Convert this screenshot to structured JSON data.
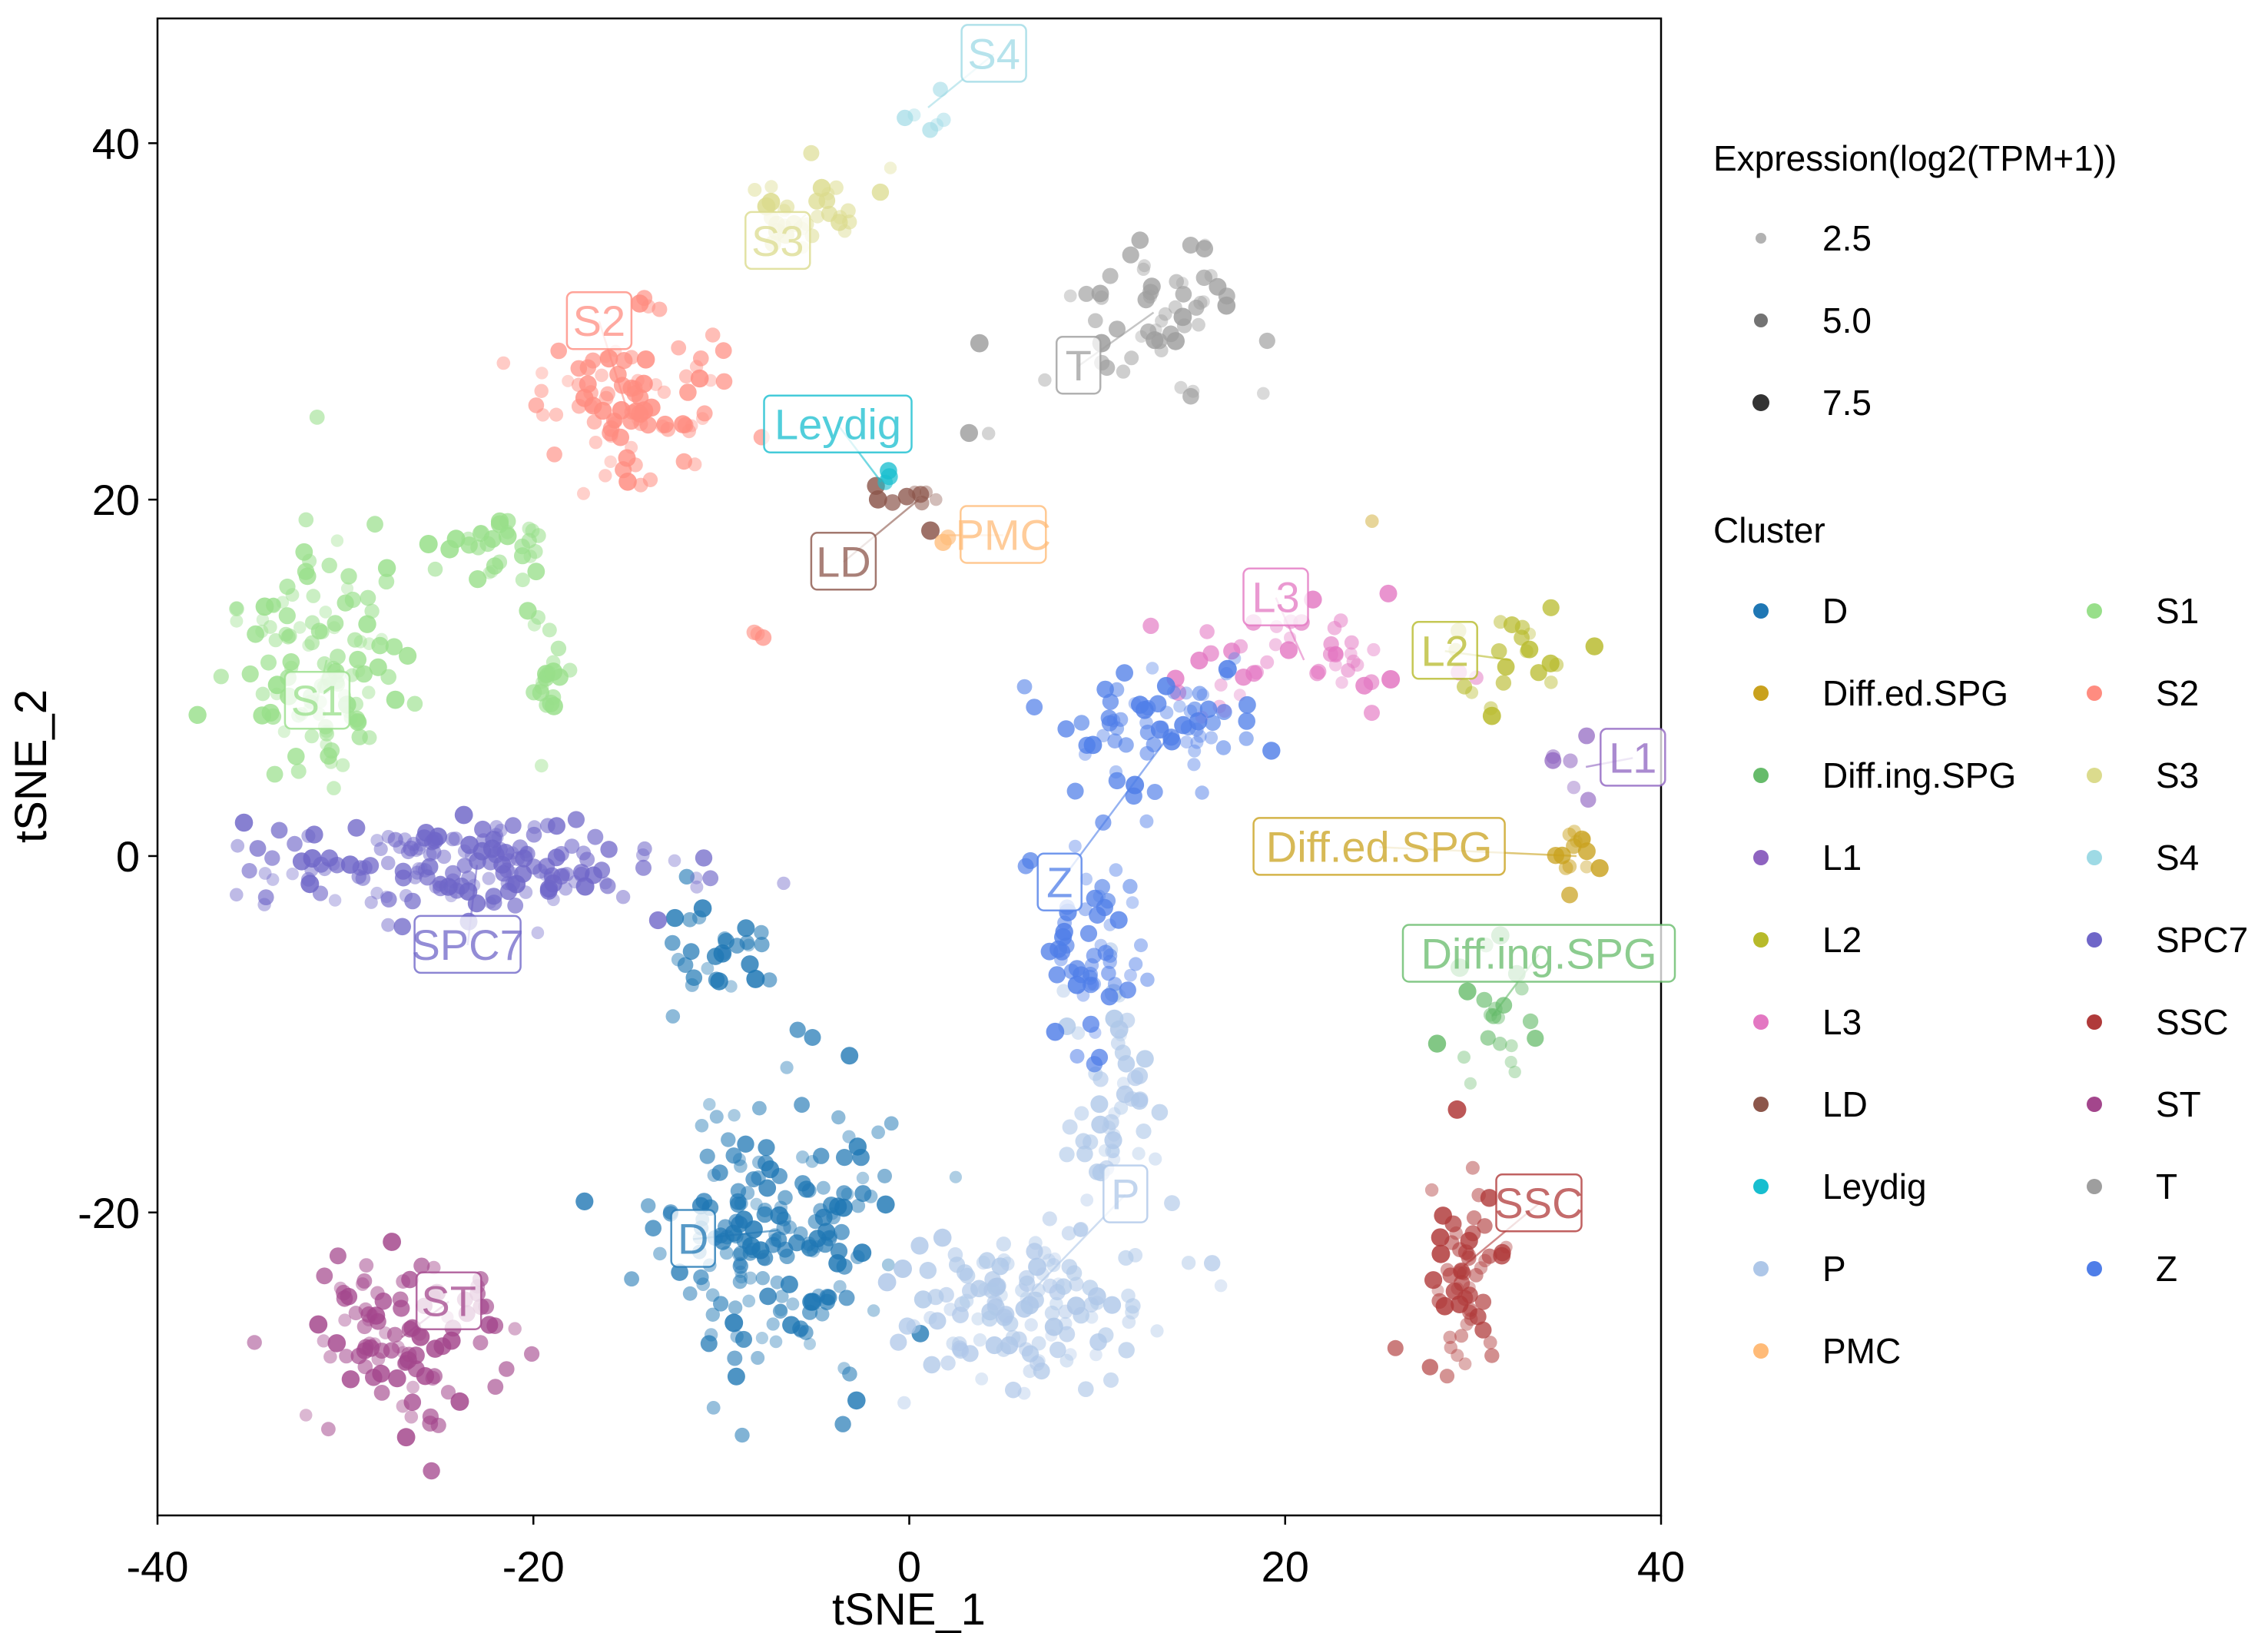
{
  "chart_data": {
    "type": "scatter",
    "title": "",
    "xlabel": "tSNE_1",
    "ylabel": "tSNE_2",
    "xlim": [
      -40,
      40
    ],
    "ylim": [
      -37,
      47
    ],
    "x_ticks": [
      -40,
      -20,
      0,
      20,
      40
    ],
    "y_ticks": [
      -20,
      0,
      20,
      40
    ],
    "x_tick_labels": [
      "-40",
      "-20",
      "0",
      "20",
      "40"
    ],
    "y_tick_labels": [
      "-20",
      "0",
      "20",
      "40"
    ],
    "grid": false,
    "legend_placement": "right",
    "size_legend": {
      "title": "Expression(log2(TPM+1))",
      "values": [
        2.5,
        5.0,
        7.5
      ],
      "labels": [
        "2.5",
        "5.0",
        "7.5"
      ]
    },
    "color_legend": {
      "title": "Cluster",
      "ncol": 2
    },
    "series": [
      {
        "name": "D",
        "color": "#1f77b4",
        "label_pos": [
          -11.5,
          -21.5
        ],
        "clusters": [
          {
            "center": [
              -7,
              -21
            ],
            "spread": [
              4.2,
              5.5
            ],
            "n": 190
          },
          {
            "center": [
              -10,
              -5
            ],
            "spread": [
              2.5,
              2.5
            ],
            "n": 30
          }
        ]
      },
      {
        "name": "Diff.ed.SPG",
        "color": "#c9a11d",
        "label_pos": [
          25,
          0.5
        ],
        "clusters": [
          {
            "center": [
              35.5,
              0
            ],
            "spread": [
              0.9,
              1.3
            ],
            "n": 14
          },
          {
            "center": [
              24.5,
              18.5
            ],
            "spread": [
              0.2,
              0.2
            ],
            "n": 1
          }
        ]
      },
      {
        "name": "Diff.ing.SPG",
        "color": "#66bb6a",
        "label_pos": [
          33.5,
          -5.5
        ],
        "clusters": [
          {
            "center": [
              31,
              -9
            ],
            "spread": [
              2.2,
              4
            ],
            "n": 22
          }
        ]
      },
      {
        "name": "L1",
        "color": "#8e63c0",
        "label_pos": [
          38.5,
          5.5
        ],
        "clusters": [
          {
            "center": [
              36,
              5
            ],
            "spread": [
              1.5,
              2
            ],
            "n": 6
          }
        ]
      },
      {
        "name": "L2",
        "color": "#b7ba2a",
        "label_pos": [
          28.5,
          11.5
        ],
        "clusters": [
          {
            "center": [
              32,
              11
            ],
            "spread": [
              2.6,
              2.5
            ],
            "n": 22
          }
        ]
      },
      {
        "name": "L3",
        "color": "#e377c2",
        "label_pos": [
          19.5,
          14.5
        ],
        "clusters": [
          {
            "center": [
              21,
              11
            ],
            "spread": [
              5,
              2.6
            ],
            "n": 48
          }
        ]
      },
      {
        "name": "LD",
        "color": "#8c564b",
        "label_pos": [
          -3.5,
          16.5
        ],
        "clusters": [
          {
            "center": [
              0.5,
              20
            ],
            "spread": [
              1.8,
              1.8
            ],
            "n": 10
          }
        ]
      },
      {
        "name": "Leydig",
        "color": "#17becf",
        "label_pos": [
          -3.8,
          24.2
        ],
        "clusters": [
          {
            "center": [
              -1.5,
              21
            ],
            "spread": [
              0.4,
              0.6
            ],
            "n": 3
          }
        ]
      },
      {
        "name": "P",
        "color": "#aec7e8",
        "label_pos": [
          11.5,
          -19
        ],
        "clusters": [
          {
            "center": [
              6,
              -25
            ],
            "spread": [
              5,
              3
            ],
            "n": 130
          },
          {
            "center": [
              11,
              -14
            ],
            "spread": [
              2,
              5
            ],
            "n": 50
          }
        ]
      },
      {
        "name": "PMC",
        "color": "#ffbb78",
        "label_pos": [
          5,
          18
        ],
        "clusters": [
          {
            "center": [
              2,
              18
            ],
            "spread": [
              0.5,
              0.5
            ],
            "n": 2
          }
        ]
      },
      {
        "name": "S1",
        "color": "#98df8a",
        "label_pos": [
          -31.5,
          8.7
        ],
        "clusters": [
          {
            "center": [
              -31,
              11
            ],
            "spread": [
              3,
              5
            ],
            "n": 120
          },
          {
            "center": [
              -22,
              17
            ],
            "spread": [
              2,
              1.5
            ],
            "n": 30
          },
          {
            "center": [
              -19.5,
              10
            ],
            "spread": [
              1,
              3
            ],
            "n": 22
          }
        ]
      },
      {
        "name": "S2",
        "color": "#ff8c80",
        "label_pos": [
          -16.5,
          30
        ],
        "clusters": [
          {
            "center": [
              -15,
              25
            ],
            "spread": [
              3.5,
              3.2
            ],
            "n": 95
          },
          {
            "center": [
              -8,
              12.5
            ],
            "spread": [
              0.4,
              0.3
            ],
            "n": 3
          }
        ]
      },
      {
        "name": "S3",
        "color": "#dbdb8d",
        "label_pos": [
          -7,
          34.5
        ],
        "clusters": [
          {
            "center": [
              -5.5,
              36
            ],
            "spread": [
              2.2,
              2
            ],
            "n": 32
          }
        ]
      },
      {
        "name": "S4",
        "color": "#9edae5",
        "label_pos": [
          4.5,
          45
        ],
        "clusters": [
          {
            "center": [
              1,
              42
            ],
            "spread": [
              1.2,
              1.2
            ],
            "n": 6
          }
        ]
      },
      {
        "name": "SPC7",
        "color": "#6f66c8",
        "label_pos": [
          -23.5,
          -5
        ],
        "clusters": [
          {
            "center": [
              -23,
              -0.5
            ],
            "spread": [
              8,
              2
            ],
            "n": 180
          }
        ]
      },
      {
        "name": "SSC",
        "color": "#b03a3a",
        "label_pos": [
          33.5,
          -19.5
        ],
        "clusters": [
          {
            "center": [
              29.5,
              -23
            ],
            "spread": [
              1.5,
              4
            ],
            "n": 60
          }
        ]
      },
      {
        "name": "ST",
        "color": "#a3468c",
        "label_pos": [
          -24.5,
          -25
        ],
        "clusters": [
          {
            "center": [
              -27,
              -27
            ],
            "spread": [
              4,
              3.5
            ],
            "n": 100
          }
        ]
      },
      {
        "name": "T",
        "color": "#9e9e9e",
        "label_pos": [
          9,
          27.5
        ],
        "clusters": [
          {
            "center": [
              13,
              30.5
            ],
            "spread": [
              3.2,
              2.8
            ],
            "n": 55
          },
          {
            "center": [
              3.5,
              24
            ],
            "spread": [
              1,
              0.4
            ],
            "n": 2
          }
        ]
      },
      {
        "name": "Z",
        "color": "#4f7ee8",
        "label_pos": [
          8,
          -1.5
        ],
        "clusters": [
          {
            "center": [
              14,
              7
            ],
            "spread": [
              4,
              3
            ],
            "n": 70
          },
          {
            "center": [
              10,
              -5
            ],
            "spread": [
              2,
              4
            ],
            "n": 60
          }
        ]
      }
    ]
  }
}
